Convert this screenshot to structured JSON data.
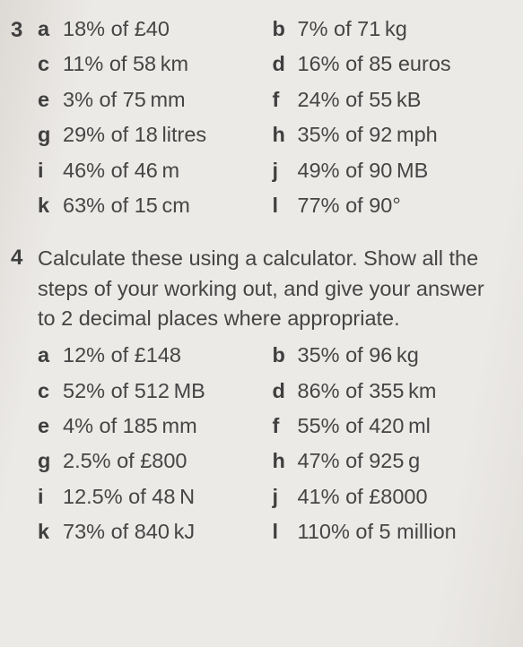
{
  "colors": {
    "background": "#e8e6e3",
    "text": "#4a4a4a",
    "bold": "#3f3f3f"
  },
  "typography": {
    "font_family": "Arial, Helvetica, sans-serif",
    "font_size_pt": 18,
    "line_height": 1.42
  },
  "questions": [
    {
      "number": "3",
      "instruction": null,
      "items": [
        {
          "letter": "a",
          "text": "18% of £40"
        },
        {
          "letter": "b",
          "text": "7% of 71 kg"
        },
        {
          "letter": "c",
          "text": "11% of 58 km"
        },
        {
          "letter": "d",
          "text": "16% of 85 euros"
        },
        {
          "letter": "e",
          "text": "3% of 75 mm"
        },
        {
          "letter": "f",
          "text": "24% of 55 kB"
        },
        {
          "letter": "g",
          "text": "29% of 18 litres"
        },
        {
          "letter": "h",
          "text": "35% of 92 mph"
        },
        {
          "letter": "i",
          "text": "46% of 46 m"
        },
        {
          "letter": "j",
          "text": "49% of 90 MB"
        },
        {
          "letter": "k",
          "text": "63% of 15 cm"
        },
        {
          "letter": "l",
          "text": "77% of 90°"
        }
      ]
    },
    {
      "number": "4",
      "instruction": "Calculate these using a calculator. Show all the steps of your working out, and give your answer to 2 decimal places where appropriate.",
      "items": [
        {
          "letter": "a",
          "text": "12% of £148"
        },
        {
          "letter": "b",
          "text": "35% of 96 kg"
        },
        {
          "letter": "c",
          "text": "52% of 512 MB"
        },
        {
          "letter": "d",
          "text": "86% of 355 km"
        },
        {
          "letter": "e",
          "text": "4% of 185 mm"
        },
        {
          "letter": "f",
          "text": "55% of 420 ml"
        },
        {
          "letter": "g",
          "text": "2.5% of £800"
        },
        {
          "letter": "h",
          "text": "47% of 925 g"
        },
        {
          "letter": "i",
          "text": "12.5% of 48 N"
        },
        {
          "letter": "j",
          "text": "41% of £8000"
        },
        {
          "letter": "k",
          "text": "73% of 840 kJ"
        },
        {
          "letter": "l",
          "text": "110% of 5 million"
        }
      ]
    }
  ]
}
